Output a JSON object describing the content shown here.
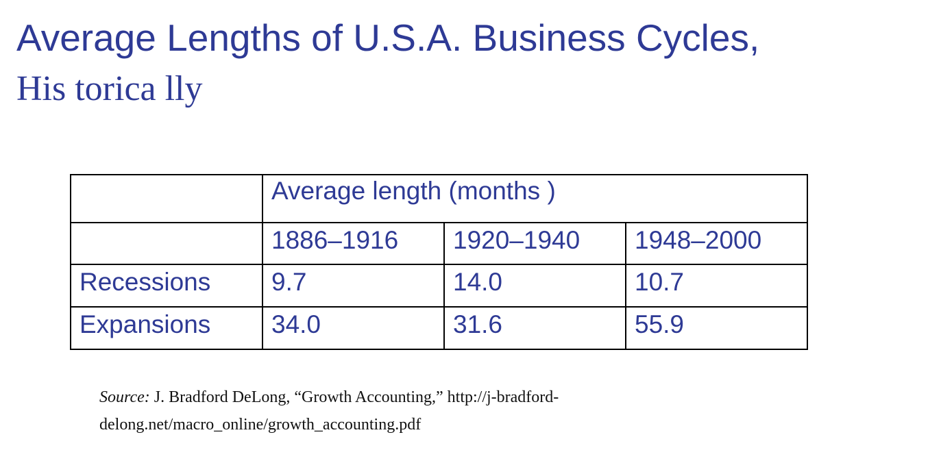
{
  "slide": {
    "title_line1": "Average Lengths of U.S.A. Business Cycles,",
    "title_line2": "His torica lly"
  },
  "table": {
    "header_group": "Average length (months )",
    "periods": [
      "1886–1916",
      "1920–1940",
      "1948–2000"
    ],
    "rows": [
      {
        "label": "Recessions",
        "values": [
          "9.7",
          "14.0",
          "10.7"
        ]
      },
      {
        "label": "Expansions",
        "values": [
          "34.0",
          "31.6",
          "55.9"
        ]
      }
    ]
  },
  "source": {
    "label": "Source:",
    "text": " J. Bradford DeLong, “Growth Accounting,” http://j-bradford-delong.net/macro_online/growth_accounting.pdf"
  },
  "colors": {
    "title_text": "#2e3a95",
    "table_text": "#2e3a95",
    "border": "#000000",
    "source_text": "#111111"
  }
}
